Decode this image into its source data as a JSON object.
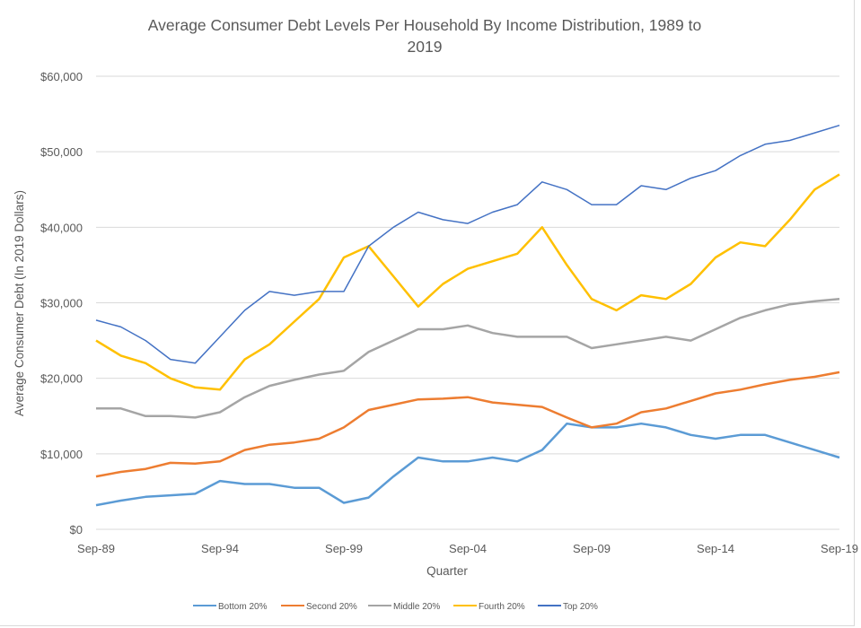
{
  "chart_data": {
    "type": "line",
    "title_lines": [
      "Average Consumer Debt Levels Per Household By Income Distribution, 1989 to",
      "2019"
    ],
    "xlabel": "Quarter",
    "ylabel": "Average Consumer Debt (In 2019 Dollars)",
    "x_tick_labels": [
      "Sep-89",
      "Sep-94",
      "Sep-99",
      "Sep-04",
      "Sep-09",
      "Sep-14",
      "Sep-19"
    ],
    "y_tick_labels": [
      "$0",
      "$10,000",
      "$20,000",
      "$30,000",
      "$40,000",
      "$50,000",
      "$60,000"
    ],
    "ylim": [
      0,
      60000
    ],
    "xlim": [
      "Sep-89",
      "Sep-19"
    ],
    "grid": "horizontal",
    "legend_position": "bottom",
    "x": [
      "Sep-89",
      "Sep-90",
      "Sep-91",
      "Sep-92",
      "Sep-93",
      "Sep-94",
      "Sep-95",
      "Sep-96",
      "Sep-97",
      "Sep-98",
      "Sep-99",
      "Sep-00",
      "Sep-01",
      "Sep-02",
      "Sep-03",
      "Sep-04",
      "Sep-05",
      "Sep-06",
      "Sep-07",
      "Sep-08",
      "Sep-09",
      "Sep-10",
      "Sep-11",
      "Sep-12",
      "Sep-13",
      "Sep-14",
      "Sep-15",
      "Sep-16",
      "Sep-17",
      "Sep-18",
      "Sep-19"
    ],
    "series": [
      {
        "name": "Bottom 20%",
        "color": "#5B9BD5",
        "values": [
          3200,
          3800,
          4300,
          4500,
          4700,
          6400,
          6000,
          6000,
          5500,
          5500,
          3500,
          4200,
          7000,
          9500,
          9000,
          9000,
          9500,
          9000,
          10500,
          14000,
          13500,
          13500,
          14000,
          13500,
          12500,
          12000,
          12500,
          12500,
          11500,
          10500,
          9500
        ]
      },
      {
        "name": "Second 20%",
        "color": "#ED7D31",
        "values": [
          7000,
          7600,
          8000,
          8800,
          8700,
          9000,
          10500,
          11200,
          11500,
          12000,
          13500,
          15800,
          16500,
          17200,
          17300,
          17500,
          16800,
          16500,
          16200,
          14800,
          13500,
          14000,
          15500,
          16000,
          17000,
          18000,
          18500,
          19200,
          19800,
          20200,
          20800
        ]
      },
      {
        "name": "Middle 20%",
        "color": "#A5A5A5",
        "values": [
          16000,
          16000,
          15000,
          15000,
          14800,
          15500,
          17500,
          19000,
          19800,
          20500,
          21000,
          23500,
          25000,
          26500,
          26500,
          27000,
          26000,
          25500,
          25500,
          25500,
          24000,
          24500,
          25000,
          25500,
          25000,
          26500,
          28000,
          29000,
          29800,
          30200,
          30500
        ]
      },
      {
        "name": "Fourth 20%",
        "color": "#FFC000",
        "values": [
          25000,
          23000,
          22000,
          20000,
          18800,
          18500,
          22500,
          24500,
          27500,
          30500,
          36000,
          37500,
          33500,
          29500,
          32500,
          34500,
          35500,
          36500,
          40000,
          35000,
          30500,
          29000,
          31000,
          30500,
          32500,
          36000,
          38000,
          37500,
          41000,
          45000,
          47000
        ]
      },
      {
        "name": "Top 20%",
        "color": "#4472C4",
        "values": [
          27700,
          26800,
          25000,
          22500,
          22000,
          25500,
          29000,
          31500,
          31000,
          31500,
          31500,
          37500,
          40000,
          42000,
          41000,
          40500,
          42000,
          43000,
          46000,
          45000,
          43000,
          43000,
          45500,
          45000,
          46500,
          47500,
          49500,
          51000,
          51500,
          52500,
          53500
        ]
      }
    ]
  }
}
